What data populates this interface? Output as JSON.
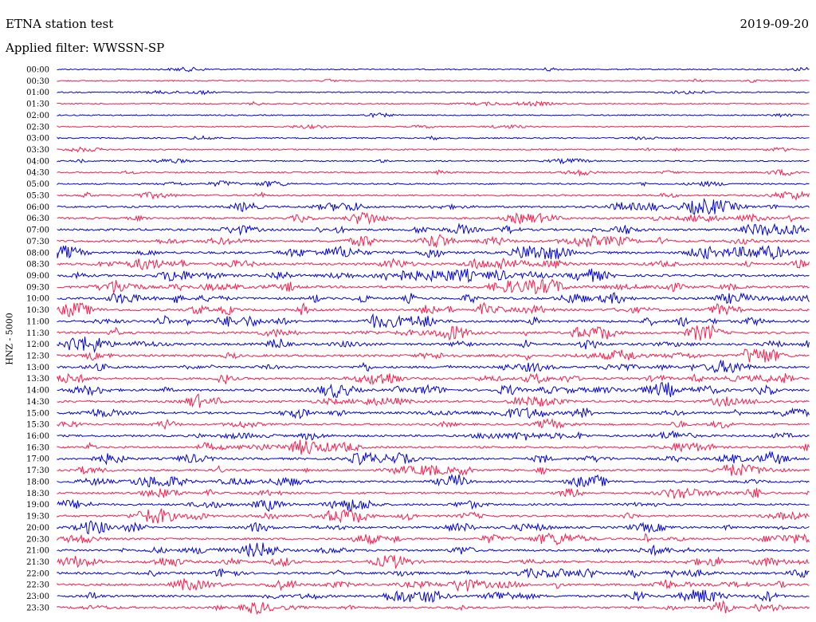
{
  "header": {
    "title": "ETNA station test",
    "date": "2019-09-20",
    "filter": "Applied filter: WWSSN-SP"
  },
  "chart_data": {
    "type": "line",
    "subtype": "helicorder",
    "title": "ETNA station test",
    "subtitle": "Applied filter: WWSSN-SP",
    "date": "2019-09-20",
    "ylabel": "HNZ - 5000",
    "xlabel": "",
    "grid": false,
    "series_colors": [
      "#0000e0",
      "#ff1a4a"
    ],
    "row_labels": [
      "00:00",
      "00:30",
      "01:00",
      "01:30",
      "02:00",
      "02:30",
      "03:00",
      "03:30",
      "04:00",
      "04:30",
      "05:00",
      "05:30",
      "06:00",
      "06:30",
      "07:00",
      "07:30",
      "08:00",
      "08:30",
      "09:00",
      "09:30",
      "10:00",
      "10:30",
      "11:00",
      "11:30",
      "12:00",
      "12:30",
      "13:00",
      "13:30",
      "14:00",
      "14:30",
      "15:00",
      "15:30",
      "16:00",
      "16:30",
      "17:00",
      "17:30",
      "18:00",
      "18:30",
      "19:00",
      "19:30",
      "20:00",
      "20:30",
      "21:00",
      "21:30",
      "22:00",
      "22:30",
      "23:00",
      "23:30"
    ],
    "activity_level": [
      0.1,
      0.12,
      0.1,
      0.12,
      0.08,
      0.1,
      0.15,
      0.18,
      0.15,
      0.2,
      0.22,
      0.3,
      0.45,
      0.45,
      0.5,
      0.55,
      0.65,
      0.62,
      0.65,
      0.65,
      0.6,
      0.65,
      0.62,
      0.65,
      0.6,
      0.6,
      0.55,
      0.6,
      0.62,
      0.55,
      0.55,
      0.45,
      0.5,
      0.52,
      0.55,
      0.5,
      0.5,
      0.45,
      0.45,
      0.5,
      0.5,
      0.5,
      0.5,
      0.55,
      0.55,
      0.6,
      0.55,
      0.5
    ]
  }
}
